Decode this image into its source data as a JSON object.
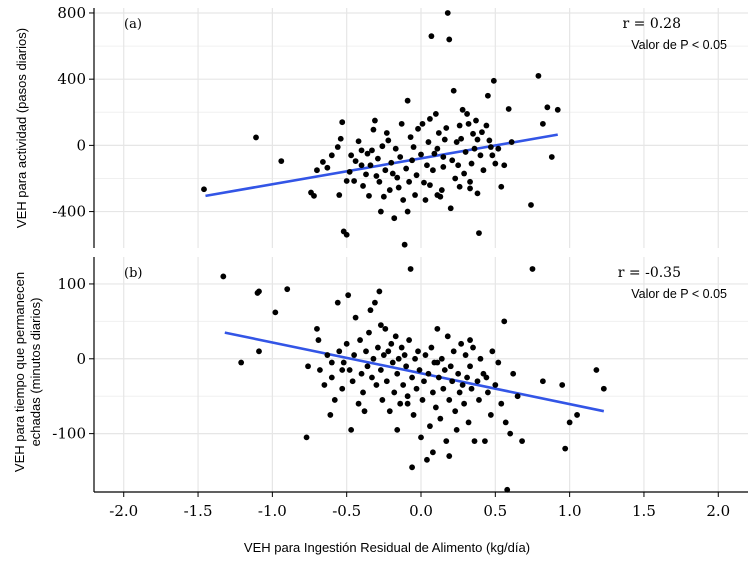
{
  "colors": {
    "fit_line": "#3355e6",
    "points": "#000000",
    "grid": "#e6e6e6",
    "axis": "#000000"
  },
  "xlabel": "VEH para Ingestión Residual de Alimento (kg/día)",
  "x_ticks": [
    "-2.0",
    "-1.5",
    "-1.0",
    "-0.5",
    "0.0",
    "0.5",
    "1.0",
    "1.5",
    "2.0"
  ],
  "chart_data": [
    {
      "type": "scatter",
      "panel": "(a)",
      "ylabel": "VEH para actividad (pasos diarios)",
      "r_label": "r = 0.28",
      "p_label": "Valor de P  < 0.05",
      "xlim": [
        -2.2,
        2.2
      ],
      "ylim": [
        -620,
        830
      ],
      "y_ticks": [
        800,
        400,
        0,
        -400
      ],
      "y_tick_labels": [
        "800",
        "400",
        "0",
        "-400"
      ],
      "grid": true,
      "fit_line": [
        [
          -1.45,
          -305
        ],
        [
          0.92,
          65
        ]
      ],
      "points": [
        [
          -1.46,
          -265
        ],
        [
          -1.11,
          48
        ],
        [
          -0.94,
          -95
        ],
        [
          -0.74,
          -285
        ],
        [
          -0.72,
          -305
        ],
        [
          -0.7,
          -150
        ],
        [
          -0.66,
          -100
        ],
        [
          -0.63,
          -135
        ],
        [
          -0.6,
          -60
        ],
        [
          -0.56,
          -10
        ],
        [
          -0.54,
          40
        ],
        [
          -0.53,
          140
        ],
        [
          -0.52,
          -520
        ],
        [
          -0.5,
          -540
        ],
        [
          -0.5,
          -215
        ],
        [
          -0.48,
          -160
        ],
        [
          -0.47,
          -60
        ],
        [
          -0.45,
          -215
        ],
        [
          -0.44,
          -95
        ],
        [
          -0.42,
          25
        ],
        [
          -0.4,
          -120
        ],
        [
          -0.39,
          -245
        ],
        [
          -0.37,
          -175
        ],
        [
          -0.35,
          -305
        ],
        [
          -0.34,
          -120
        ],
        [
          -0.33,
          -30
        ],
        [
          -0.32,
          95
        ],
        [
          -0.3,
          -185
        ],
        [
          -0.29,
          -80
        ],
        [
          -0.28,
          -220
        ],
        [
          -0.27,
          -400
        ],
        [
          -0.26,
          -5
        ],
        [
          -0.25,
          -310
        ],
        [
          -0.24,
          -150
        ],
        [
          -0.23,
          75
        ],
        [
          -0.22,
          30
        ],
        [
          -0.21,
          -270
        ],
        [
          -0.2,
          -105
        ],
        [
          -0.18,
          -440
        ],
        [
          -0.17,
          -20
        ],
        [
          -0.16,
          -195
        ],
        [
          -0.15,
          -255
        ],
        [
          -0.14,
          -70
        ],
        [
          -0.13,
          130
        ],
        [
          -0.12,
          -330
        ],
        [
          -0.11,
          -600
        ],
        [
          -0.1,
          -140
        ],
        [
          -0.09,
          -400
        ],
        [
          -0.08,
          -220
        ],
        [
          -0.07,
          50
        ],
        [
          -0.06,
          -90
        ],
        [
          -0.05,
          -10
        ],
        [
          -0.04,
          -300
        ],
        [
          -0.03,
          -180
        ],
        [
          -0.02,
          100
        ],
        [
          0.0,
          -55
        ],
        [
          0.01,
          130
        ],
        [
          0.02,
          -225
        ],
        [
          0.03,
          -330
        ],
        [
          0.04,
          -120
        ],
        [
          0.05,
          20
        ],
        [
          0.06,
          160
        ],
        [
          0.07,
          660
        ],
        [
          0.08,
          -150
        ],
        [
          0.09,
          -50
        ],
        [
          0.1,
          190
        ],
        [
          0.11,
          -20
        ],
        [
          0.12,
          75
        ],
        [
          0.13,
          -310
        ],
        [
          0.14,
          -270
        ],
        [
          0.15,
          -70
        ],
        [
          0.16,
          35
        ],
        [
          0.17,
          105
        ],
        [
          0.18,
          800
        ],
        [
          0.19,
          640
        ],
        [
          0.2,
          -380
        ],
        [
          0.21,
          -90
        ],
        [
          0.22,
          330
        ],
        [
          0.23,
          -200
        ],
        [
          0.24,
          20
        ],
        [
          0.25,
          -120
        ],
        [
          0.26,
          -250
        ],
        [
          0.27,
          40
        ],
        [
          0.28,
          215
        ],
        [
          0.29,
          -170
        ],
        [
          0.3,
          -40
        ],
        [
          0.31,
          190
        ],
        [
          0.32,
          130
        ],
        [
          0.33,
          -220
        ],
        [
          0.34,
          -110
        ],
        [
          0.35,
          70
        ],
        [
          0.36,
          -20
        ],
        [
          0.37,
          150
        ],
        [
          0.38,
          -290
        ],
        [
          0.39,
          -530
        ],
        [
          0.4,
          -60
        ],
        [
          0.41,
          80
        ],
        [
          0.42,
          -150
        ],
        [
          0.44,
          120
        ],
        [
          0.45,
          300
        ],
        [
          0.46,
          30
        ],
        [
          0.48,
          -60
        ],
        [
          0.49,
          390
        ],
        [
          0.5,
          -110
        ],
        [
          0.52,
          -20
        ],
        [
          0.54,
          -250
        ],
        [
          0.56,
          -120
        ],
        [
          0.59,
          220
        ],
        [
          0.61,
          20
        ],
        [
          0.74,
          -360
        ],
        [
          0.79,
          420
        ],
        [
          0.82,
          130
        ],
        [
          0.85,
          230
        ],
        [
          0.88,
          -70
        ],
        [
          0.92,
          215
        ],
        [
          -0.55,
          -300
        ],
        [
          -0.36,
          -50
        ],
        [
          -0.19,
          -170
        ],
        [
          0.15,
          -130
        ],
        [
          0.33,
          -260
        ],
        [
          0.47,
          -10
        ],
        [
          -0.31,
          150
        ],
        [
          0.06,
          -240
        ],
        [
          0.26,
          120
        ],
        [
          -0.09,
          270
        ],
        [
          -0.4,
          -30
        ],
        [
          0.38,
          35
        ],
        [
          0.11,
          -300
        ]
      ]
    },
    {
      "type": "scatter",
      "panel": "(b)",
      "ylabel": "VEH para tiempo que permanecen echadas (minutos diarios)",
      "ylabel_lines": [
        "VEH para tiempo que permanecen",
        "echadas (minutos diarios)"
      ],
      "r_label": "r = -0.35",
      "p_label": "Valor de P  < 0.05",
      "xlim": [
        -2.2,
        2.2
      ],
      "ylim": [
        -178,
        136
      ],
      "y_ticks": [
        100,
        0,
        -100
      ],
      "y_tick_labels": [
        "100",
        "0",
        "-100"
      ],
      "grid": true,
      "fit_line": [
        [
          -1.32,
          35
        ],
        [
          1.23,
          -70
        ]
      ],
      "points": [
        [
          -1.33,
          110
        ],
        [
          -1.21,
          -5
        ],
        [
          -1.1,
          88
        ],
        [
          -1.09,
          90
        ],
        [
          -1.09,
          10
        ],
        [
          -0.98,
          62
        ],
        [
          -0.9,
          93
        ],
        [
          -0.77,
          -105
        ],
        [
          -0.76,
          -10
        ],
        [
          -0.7,
          40
        ],
        [
          -0.69,
          25
        ],
        [
          -0.68,
          -15
        ],
        [
          -0.65,
          -35
        ],
        [
          -0.63,
          5
        ],
        [
          -0.61,
          -75
        ],
        [
          -0.6,
          -25
        ],
        [
          -0.58,
          -55
        ],
        [
          -0.56,
          75
        ],
        [
          -0.55,
          10
        ],
        [
          -0.53,
          -40
        ],
        [
          -0.52,
          -5
        ],
        [
          -0.5,
          20
        ],
        [
          -0.49,
          85
        ],
        [
          -0.48,
          -15
        ],
        [
          -0.46,
          -30
        ],
        [
          -0.45,
          5
        ],
        [
          -0.44,
          55
        ],
        [
          -0.42,
          -60
        ],
        [
          -0.41,
          25
        ],
        [
          -0.4,
          -20
        ],
        [
          -0.39,
          -45
        ],
        [
          -0.37,
          10
        ],
        [
          -0.36,
          -10
        ],
        [
          -0.35,
          35
        ],
        [
          -0.34,
          65
        ],
        [
          -0.33,
          -25
        ],
        [
          -0.32,
          0
        ],
        [
          -0.31,
          75
        ],
        [
          -0.3,
          -35
        ],
        [
          -0.29,
          15
        ],
        [
          -0.28,
          90
        ],
        [
          -0.27,
          -15
        ],
        [
          -0.26,
          -55
        ],
        [
          -0.25,
          5
        ],
        [
          -0.24,
          40
        ],
        [
          -0.23,
          -30
        ],
        [
          -0.22,
          10
        ],
        [
          -0.21,
          -70
        ],
        [
          -0.2,
          20
        ],
        [
          -0.19,
          -5
        ],
        [
          -0.18,
          -45
        ],
        [
          -0.17,
          30
        ],
        [
          -0.16,
          -20
        ],
        [
          -0.15,
          0
        ],
        [
          -0.14,
          -60
        ],
        [
          -0.13,
          15
        ],
        [
          -0.12,
          -35
        ],
        [
          -0.11,
          5
        ],
        [
          -0.1,
          -10
        ],
        [
          -0.09,
          -50
        ],
        [
          -0.08,
          25
        ],
        [
          -0.07,
          120
        ],
        [
          -0.06,
          -25
        ],
        [
          -0.05,
          -75
        ],
        [
          -0.04,
          0
        ],
        [
          -0.03,
          -40
        ],
        [
          -0.02,
          10
        ],
        [
          -0.01,
          -15
        ],
        [
          0.0,
          -105
        ],
        [
          0.01,
          -55
        ],
        [
          0.02,
          -30
        ],
        [
          0.03,
          5
        ],
        [
          0.04,
          -135
        ],
        [
          0.05,
          -20
        ],
        [
          0.06,
          -90
        ],
        [
          0.07,
          15
        ],
        [
          0.08,
          -45
        ],
        [
          0.09,
          -5
        ],
        [
          0.1,
          -65
        ],
        [
          0.11,
          40
        ],
        [
          0.12,
          -25
        ],
        [
          0.13,
          -80
        ],
        [
          0.14,
          0
        ],
        [
          0.15,
          -40
        ],
        [
          0.16,
          -15
        ],
        [
          0.17,
          -110
        ],
        [
          0.18,
          30
        ],
        [
          0.19,
          -55
        ],
        [
          0.2,
          -10
        ],
        [
          0.21,
          -30
        ],
        [
          0.22,
          10
        ],
        [
          0.23,
          -70
        ],
        [
          0.24,
          -95
        ],
        [
          0.25,
          -20
        ],
        [
          0.26,
          -45
        ],
        [
          0.27,
          20
        ],
        [
          0.28,
          -35
        ],
        [
          0.29,
          -60
        ],
        [
          0.3,
          5
        ],
        [
          0.31,
          -25
        ],
        [
          0.32,
          -85
        ],
        [
          0.33,
          -10
        ],
        [
          0.34,
          -40
        ],
        [
          0.35,
          15
        ],
        [
          0.36,
          -110
        ],
        [
          0.38,
          -30
        ],
        [
          0.39,
          -55
        ],
        [
          0.4,
          0
        ],
        [
          0.42,
          -20
        ],
        [
          0.43,
          -110
        ],
        [
          0.45,
          -45
        ],
        [
          0.47,
          -75
        ],
        [
          0.48,
          10
        ],
        [
          0.5,
          -35
        ],
        [
          0.52,
          -5
        ],
        [
          0.54,
          -60
        ],
        [
          0.56,
          50
        ],
        [
          0.57,
          -85
        ],
        [
          0.58,
          -175
        ],
        [
          0.6,
          -100
        ],
        [
          0.62,
          -20
        ],
        [
          0.65,
          -50
        ],
        [
          0.68,
          -110
        ],
        [
          0.75,
          120
        ],
        [
          0.82,
          -30
        ],
        [
          0.95,
          -35
        ],
        [
          0.97,
          -120
        ],
        [
          1.0,
          -85
        ],
        [
          1.05,
          -75
        ],
        [
          1.18,
          -15
        ],
        [
          1.23,
          -40
        ],
        [
          -0.6,
          -5
        ],
        [
          -0.47,
          -95
        ],
        [
          -0.38,
          -70
        ],
        [
          -0.27,
          45
        ],
        [
          -0.16,
          -95
        ],
        [
          -0.06,
          -145
        ],
        [
          0.08,
          -125
        ],
        [
          0.19,
          -130
        ],
        [
          0.33,
          25
        ],
        [
          0.44,
          -25
        ],
        [
          -0.53,
          -15
        ],
        [
          -0.09,
          -60
        ],
        [
          0.11,
          -5
        ]
      ]
    }
  ]
}
